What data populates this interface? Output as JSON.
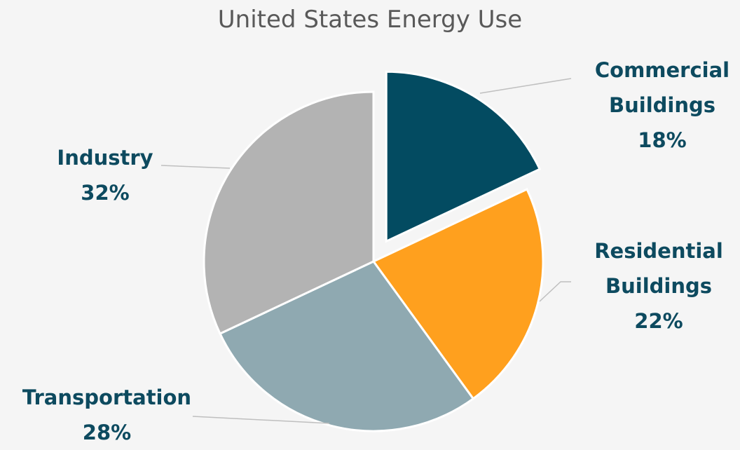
{
  "chart_data": {
    "type": "pie",
    "title": "United States Energy Use",
    "categories": [
      "Commercial Buildings",
      "Residential Buildings",
      "Transportation",
      "Industry"
    ],
    "values": [
      18,
      22,
      28,
      32
    ],
    "value_labels": [
      "18%",
      "22%",
      "28%",
      "32%"
    ],
    "colors": [
      "#034b61",
      "#ffa01e",
      "#8fa9b1",
      "#b3b3b3"
    ],
    "exploded": [
      0
    ]
  }
}
